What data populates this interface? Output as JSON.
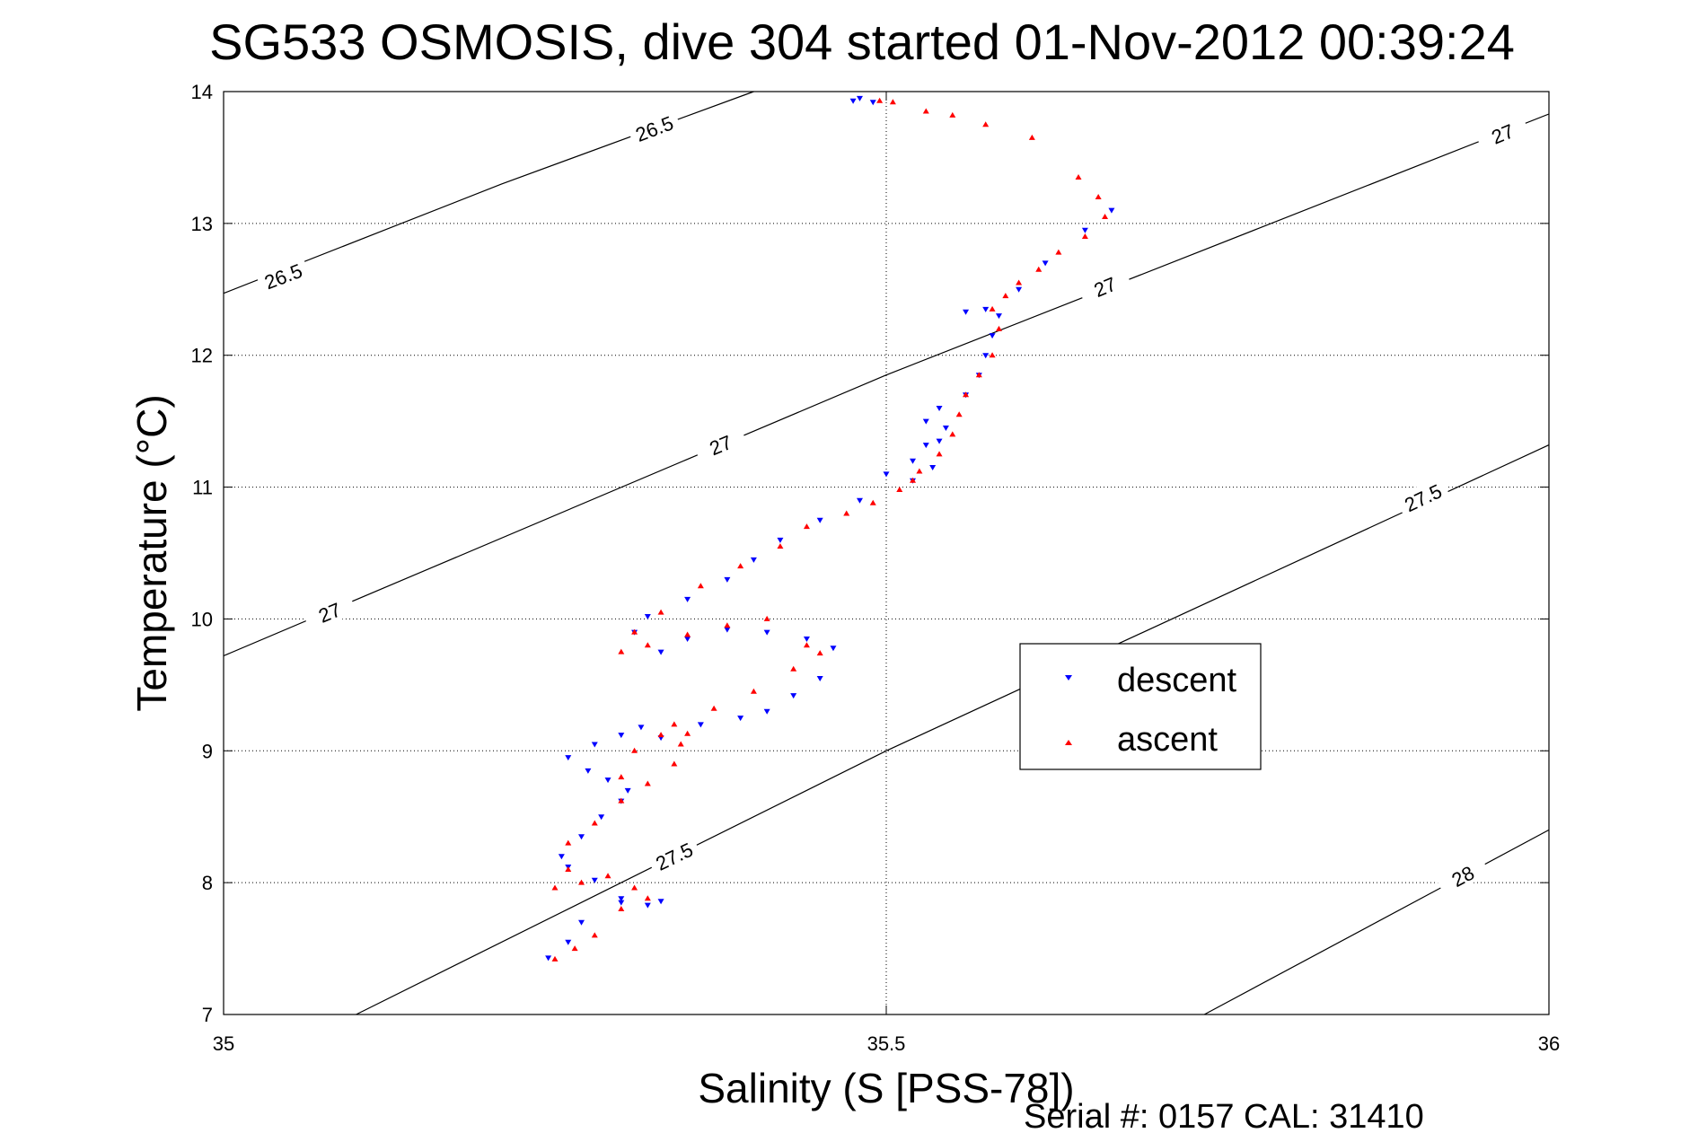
{
  "chart_data": {
    "type": "scatter",
    "title": "SG533 OSMOSIS, dive 304 started 01-Nov-2012 00:39:24",
    "xlabel": "Salinity (S [PSS-78])",
    "ylabel": "Temperature (°C)",
    "xlim": [
      35,
      36
    ],
    "ylim": [
      7,
      14
    ],
    "x_ticks": [
      35,
      35.5,
      36
    ],
    "x_tick_labels": [
      "35",
      "35.5",
      "36"
    ],
    "y_ticks": [
      7,
      8,
      9,
      10,
      11,
      12,
      13,
      14
    ],
    "y_tick_labels": [
      "7",
      "8",
      "9",
      "10",
      "11",
      "12",
      "13",
      "14"
    ],
    "grid": true,
    "legend_position": "right-middle",
    "footer": "Serial #: 0157  CAL: 31410",
    "density_contours": [
      {
        "label": "26.5",
        "points": [
          [
            35.0,
            12.47
          ],
          [
            35.21,
            13.3
          ],
          [
            35.4,
            14.0
          ]
        ],
        "labels_at": [
          [
            35.045,
            12.6
          ],
          [
            35.325,
            13.72
          ]
        ]
      },
      {
        "label": "27",
        "points": [
          [
            35.0,
            9.72
          ],
          [
            35.5,
            11.85
          ],
          [
            36.0,
            13.83
          ]
        ],
        "labels_at": [
          [
            35.08,
            10.05
          ],
          [
            35.375,
            11.32
          ],
          [
            35.665,
            12.52
          ],
          [
            35.965,
            13.68
          ]
        ]
      },
      {
        "label": "27.5",
        "points": [
          [
            35.1,
            7.0
          ],
          [
            35.5,
            9.0
          ],
          [
            36.0,
            11.32
          ]
        ],
        "labels_at": [
          [
            35.34,
            8.2
          ],
          [
            35.905,
            10.92
          ]
        ]
      },
      {
        "label": "28",
        "points": [
          [
            35.74,
            7.0
          ],
          [
            36.0,
            8.4
          ]
        ],
        "labels_at": [
          [
            35.935,
            8.05
          ]
        ]
      }
    ],
    "series": [
      {
        "name": "descent",
        "color": "#0000ff",
        "marker": "triangle-down",
        "x": [
          35.245,
          35.26,
          35.27,
          35.3,
          35.33,
          35.32,
          35.3,
          35.28,
          35.26,
          35.255,
          35.27,
          35.285,
          35.3,
          35.305,
          35.29,
          35.275,
          35.26,
          35.28,
          35.3,
          35.315,
          35.33,
          35.36,
          35.39,
          35.41,
          35.43,
          35.45,
          35.46,
          35.44,
          35.41,
          35.38,
          35.35,
          35.33,
          35.31,
          35.32,
          35.35,
          35.38,
          35.4,
          35.42,
          35.45,
          35.48,
          35.5,
          35.52,
          35.54,
          35.53,
          35.56,
          35.57,
          35.575,
          35.58,
          35.585,
          35.6,
          35.62,
          35.65,
          35.67,
          35.575,
          35.56,
          35.545,
          35.53,
          35.535,
          35.52,
          35.54,
          35.49,
          35.48,
          35.475
        ],
        "y": [
          7.43,
          7.55,
          7.7,
          7.85,
          7.86,
          7.83,
          7.88,
          8.02,
          8.12,
          8.2,
          8.35,
          8.5,
          8.62,
          8.7,
          8.78,
          8.85,
          8.95,
          9.05,
          9.12,
          9.18,
          9.1,
          9.2,
          9.25,
          9.3,
          9.42,
          9.55,
          9.78,
          9.85,
          9.9,
          9.92,
          9.85,
          9.75,
          9.9,
          10.02,
          10.15,
          10.3,
          10.45,
          10.6,
          10.75,
          10.9,
          11.1,
          11.2,
          11.35,
          11.5,
          11.7,
          11.85,
          12.0,
          12.15,
          12.3,
          12.5,
          12.7,
          12.95,
          13.1,
          12.35,
          12.33,
          11.45,
          11.32,
          11.15,
          11.05,
          11.6,
          13.92,
          13.95,
          13.93
        ]
      },
      {
        "name": "ascent",
        "color": "#ff0000",
        "marker": "triangle-up",
        "x": [
          35.25,
          35.265,
          35.28,
          35.3,
          35.32,
          35.31,
          35.29,
          35.27,
          35.26,
          35.25,
          35.26,
          35.28,
          35.3,
          35.32,
          35.34,
          35.345,
          35.35,
          35.33,
          35.31,
          35.3,
          35.34,
          35.37,
          35.4,
          35.43,
          35.45,
          35.44,
          35.41,
          35.38,
          35.35,
          35.32,
          35.3,
          35.31,
          35.33,
          35.36,
          35.39,
          35.42,
          35.44,
          35.47,
          35.49,
          35.51,
          35.52,
          35.525,
          35.54,
          35.55,
          35.555,
          35.56,
          35.57,
          35.58,
          35.585,
          35.58,
          35.59,
          35.6,
          35.615,
          35.63,
          35.65,
          35.665,
          35.66,
          35.645,
          35.61,
          35.575,
          35.55,
          35.53,
          35.505,
          35.495
        ],
        "y": [
          7.42,
          7.5,
          7.6,
          7.8,
          7.88,
          7.96,
          8.05,
          8.0,
          8.1,
          7.96,
          8.3,
          8.45,
          8.62,
          8.75,
          8.9,
          9.05,
          9.13,
          9.12,
          9.0,
          8.8,
          9.2,
          9.32,
          9.45,
          9.62,
          9.74,
          9.8,
          10.0,
          9.95,
          9.88,
          9.8,
          9.75,
          9.9,
          10.05,
          10.25,
          10.4,
          10.55,
          10.7,
          10.8,
          10.88,
          10.98,
          11.05,
          11.12,
          11.25,
          11.4,
          11.55,
          11.7,
          11.85,
          12.0,
          12.2,
          12.35,
          12.45,
          12.55,
          12.65,
          12.78,
          12.9,
          13.05,
          13.2,
          13.35,
          13.65,
          13.75,
          13.82,
          13.85,
          13.92,
          13.93
        ]
      }
    ]
  }
}
